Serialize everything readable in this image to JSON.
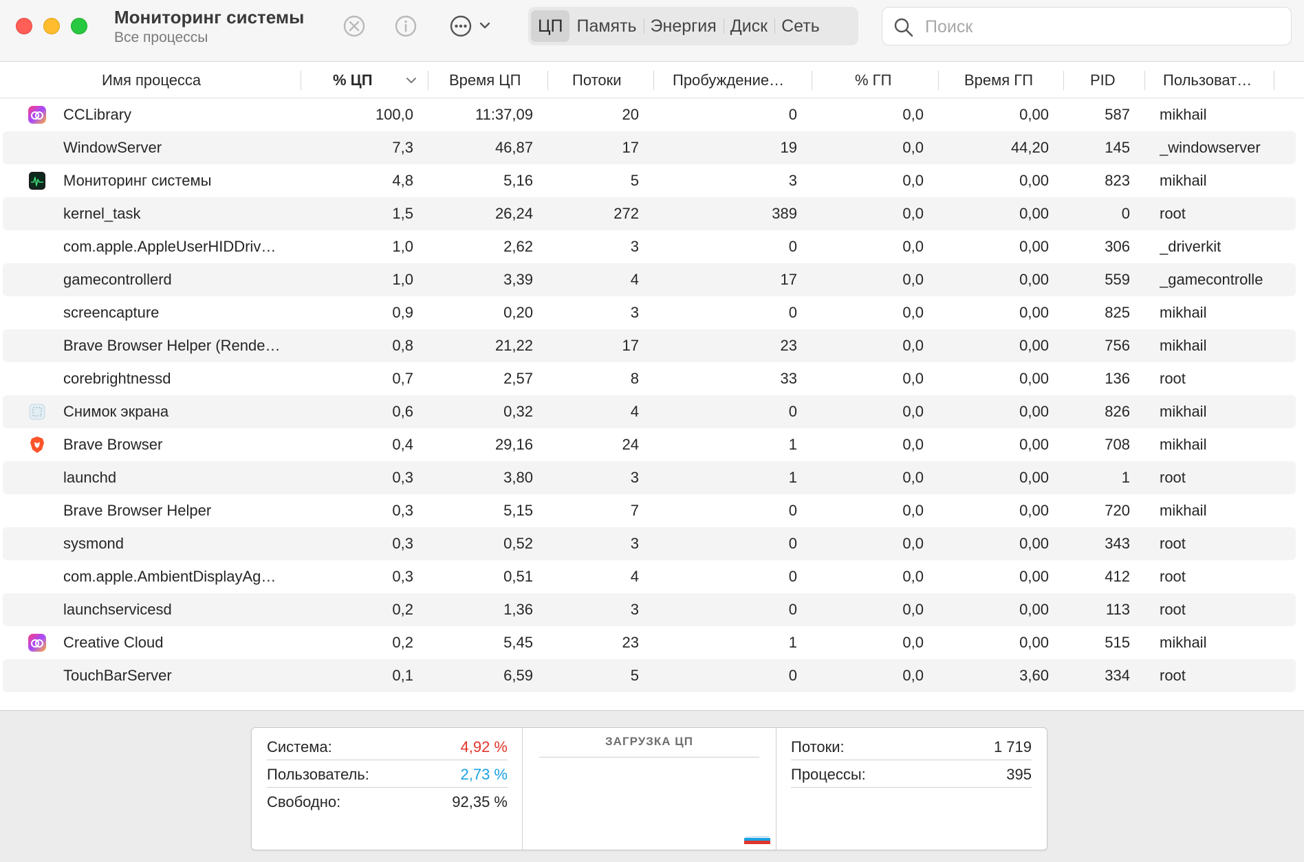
{
  "window": {
    "title": "Мониторинг системы",
    "subtitle": "Все процессы"
  },
  "toolbar": {
    "stop_icon": "stop-process-icon",
    "info_icon": "info-icon",
    "more_icon": "ellipsis-menu-icon"
  },
  "tabs": [
    {
      "label": "ЦП",
      "active": true
    },
    {
      "label": "Память",
      "active": false
    },
    {
      "label": "Энергия",
      "active": false
    },
    {
      "label": "Диск",
      "active": false
    },
    {
      "label": "Сеть",
      "active": false
    }
  ],
  "search": {
    "placeholder": "Поиск",
    "value": ""
  },
  "columns": {
    "name": "Имя процесса",
    "cpu": "% ЦП",
    "cpu_time": "Время ЦП",
    "threads": "Потоки",
    "wakeups": "Пробуждение…",
    "gpu": "% ГП",
    "gpu_time": "Время ГП",
    "pid": "PID",
    "user": "Пользоват…"
  },
  "processes": [
    {
      "icon": "creative-cloud-icon",
      "name": "CCLibrary",
      "cpu": "100,0",
      "cpu_time": "11:37,09",
      "threads": "20",
      "wakeups": "0",
      "gpu": "0,0",
      "gpu_time": "0,00",
      "pid": "587",
      "user": "mikhail"
    },
    {
      "icon": "",
      "name": "WindowServer",
      "cpu": "7,3",
      "cpu_time": "46,87",
      "threads": "17",
      "wakeups": "19",
      "gpu": "0,0",
      "gpu_time": "44,20",
      "pid": "145",
      "user": "_windowserver"
    },
    {
      "icon": "activity-monitor-icon",
      "name": "Мониторинг системы",
      "cpu": "4,8",
      "cpu_time": "5,16",
      "threads": "5",
      "wakeups": "3",
      "gpu": "0,0",
      "gpu_time": "0,00",
      "pid": "823",
      "user": "mikhail"
    },
    {
      "icon": "",
      "name": "kernel_task",
      "cpu": "1,5",
      "cpu_time": "26,24",
      "threads": "272",
      "wakeups": "389",
      "gpu": "0,0",
      "gpu_time": "0,00",
      "pid": "0",
      "user": "root"
    },
    {
      "icon": "",
      "name": "com.apple.AppleUserHIDDriv…",
      "cpu": "1,0",
      "cpu_time": "2,62",
      "threads": "3",
      "wakeups": "0",
      "gpu": "0,0",
      "gpu_time": "0,00",
      "pid": "306",
      "user": "_driverkit"
    },
    {
      "icon": "",
      "name": "gamecontrollerd",
      "cpu": "1,0",
      "cpu_time": "3,39",
      "threads": "4",
      "wakeups": "17",
      "gpu": "0,0",
      "gpu_time": "0,00",
      "pid": "559",
      "user": "_gamecontrolle"
    },
    {
      "icon": "",
      "name": "screencapture",
      "cpu": "0,9",
      "cpu_time": "0,20",
      "threads": "3",
      "wakeups": "0",
      "gpu": "0,0",
      "gpu_time": "0,00",
      "pid": "825",
      "user": "mikhail"
    },
    {
      "icon": "",
      "name": "Brave Browser Helper (Rende…",
      "cpu": "0,8",
      "cpu_time": "21,22",
      "threads": "17",
      "wakeups": "23",
      "gpu": "0,0",
      "gpu_time": "0,00",
      "pid": "756",
      "user": "mikhail"
    },
    {
      "icon": "",
      "name": "corebrightnessd",
      "cpu": "0,7",
      "cpu_time": "2,57",
      "threads": "8",
      "wakeups": "33",
      "gpu": "0,0",
      "gpu_time": "0,00",
      "pid": "136",
      "user": "root"
    },
    {
      "icon": "screenshot-icon",
      "name": "Снимок экрана",
      "cpu": "0,6",
      "cpu_time": "0,32",
      "threads": "4",
      "wakeups": "0",
      "gpu": "0,0",
      "gpu_time": "0,00",
      "pid": "826",
      "user": "mikhail"
    },
    {
      "icon": "brave-lion-icon",
      "name": "Brave Browser",
      "cpu": "0,4",
      "cpu_time": "29,16",
      "threads": "24",
      "wakeups": "1",
      "gpu": "0,0",
      "gpu_time": "0,00",
      "pid": "708",
      "user": "mikhail"
    },
    {
      "icon": "",
      "name": "launchd",
      "cpu": "0,3",
      "cpu_time": "3,80",
      "threads": "3",
      "wakeups": "1",
      "gpu": "0,0",
      "gpu_time": "0,00",
      "pid": "1",
      "user": "root"
    },
    {
      "icon": "",
      "name": "Brave Browser Helper",
      "cpu": "0,3",
      "cpu_time": "5,15",
      "threads": "7",
      "wakeups": "0",
      "gpu": "0,0",
      "gpu_time": "0,00",
      "pid": "720",
      "user": "mikhail"
    },
    {
      "icon": "",
      "name": "sysmond",
      "cpu": "0,3",
      "cpu_time": "0,52",
      "threads": "3",
      "wakeups": "0",
      "gpu": "0,0",
      "gpu_time": "0,00",
      "pid": "343",
      "user": "root"
    },
    {
      "icon": "",
      "name": "com.apple.AmbientDisplayAg…",
      "cpu": "0,3",
      "cpu_time": "0,51",
      "threads": "4",
      "wakeups": "0",
      "gpu": "0,0",
      "gpu_time": "0,00",
      "pid": "412",
      "user": "root"
    },
    {
      "icon": "",
      "name": "launchservicesd",
      "cpu": "0,2",
      "cpu_time": "1,36",
      "threads": "3",
      "wakeups": "0",
      "gpu": "0,0",
      "gpu_time": "0,00",
      "pid": "113",
      "user": "root"
    },
    {
      "icon": "creative-cloud-icon",
      "name": "Creative Cloud",
      "cpu": "0,2",
      "cpu_time": "5,45",
      "threads": "23",
      "wakeups": "1",
      "gpu": "0,0",
      "gpu_time": "0,00",
      "pid": "515",
      "user": "mikhail"
    },
    {
      "icon": "",
      "name": "TouchBarServer",
      "cpu": "0,1",
      "cpu_time": "6,59",
      "threads": "5",
      "wakeups": "0",
      "gpu": "0,0",
      "gpu_time": "3,60",
      "pid": "334",
      "user": "root"
    }
  ],
  "stats": {
    "system_label": "Система:",
    "system_value": "4,92 %",
    "user_label": "Пользователь:",
    "user_value": "2,73 %",
    "idle_label": "Свободно:",
    "idle_value": "92,35 %",
    "cpu_load_title": "ЗАГРУЗКА ЦП",
    "threads_label": "Потоки:",
    "threads_value": "1 719",
    "processes_label": "Процессы:",
    "processes_value": "395"
  },
  "colors": {
    "system": "#e0352b",
    "user": "#1aa1e0",
    "close": "#ff5f57",
    "minimize": "#febc2e",
    "maximize": "#28c840"
  }
}
